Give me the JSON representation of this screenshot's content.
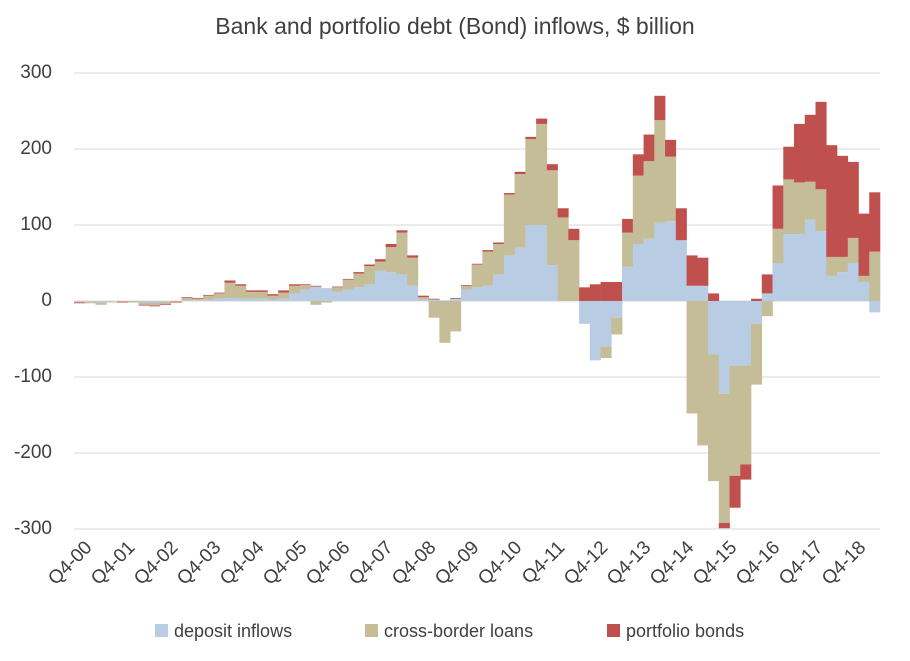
{
  "chart_data": {
    "type": "bar",
    "stacked": true,
    "title": "Bank and portfolio debt (Bond) inflows, $ billion",
    "categories": [
      "Q4-00",
      null,
      null,
      null,
      "Q4-01",
      null,
      null,
      null,
      "Q4-02",
      null,
      null,
      null,
      "Q4-03",
      null,
      null,
      null,
      "Q4-04",
      null,
      null,
      null,
      "Q4-05",
      null,
      null,
      null,
      "Q4-06",
      null,
      null,
      null,
      "Q4-07",
      null,
      null,
      null,
      "Q4-08",
      null,
      null,
      null,
      "Q4-09",
      null,
      null,
      null,
      "Q4-10",
      null,
      null,
      null,
      "Q4-11",
      null,
      null,
      null,
      "Q4-12",
      null,
      null,
      null,
      "Q4-13",
      null,
      null,
      null,
      "Q4-14",
      null,
      null,
      null,
      "Q4-15",
      null,
      null,
      null,
      "Q4-16",
      null,
      null,
      null,
      "Q4-17",
      null,
      null,
      null,
      "Q4-18",
      null,
      null
    ],
    "series": [
      {
        "name": "deposit inflows",
        "color": "#b8cce4",
        "values": [
          -1,
          -1,
          -2,
          -1,
          0,
          0,
          -2,
          -2,
          -1,
          0,
          1,
          1,
          2,
          3,
          4,
          3,
          3,
          3,
          2,
          3,
          10,
          15,
          19,
          17,
          12,
          15,
          18,
          22,
          40,
          38,
          35,
          20,
          2,
          2,
          1,
          3,
          15,
          18,
          20,
          35,
          60,
          70,
          100,
          100,
          47,
          0,
          0,
          -30,
          -78,
          -60,
          -22,
          45,
          75,
          82,
          103,
          105,
          80,
          20,
          20,
          -70,
          -122,
          -85,
          -85,
          -30,
          10,
          50,
          88,
          88,
          107,
          92,
          33,
          38,
          50,
          25,
          -15
        ]
      },
      {
        "name": "cross-border loans",
        "color": "#c4bd97",
        "values": [
          -1,
          -2,
          -3,
          -1,
          -1,
          -2,
          -3,
          -4,
          -3,
          -1,
          3,
          2,
          5,
          7,
          20,
          17,
          9,
          9,
          5,
          8,
          10,
          6,
          -5,
          -2,
          6,
          13,
          18,
          24,
          12,
          33,
          55,
          37,
          3,
          -22,
          -55,
          -40,
          5,
          30,
          45,
          40,
          80,
          97,
          113,
          133,
          125,
          110,
          80,
          0,
          0,
          -15,
          -22,
          45,
          90,
          102,
          135,
          85,
          0,
          -148,
          -190,
          -167,
          -170,
          -145,
          -130,
          -80,
          -20,
          45,
          72,
          68,
          50,
          55,
          25,
          20,
          33,
          8,
          65
        ]
      },
      {
        "name": "portfolio bonds",
        "color": "#c0504d",
        "values": [
          -1,
          0,
          0,
          0,
          -1,
          0,
          -1,
          -1,
          -1,
          -1,
          1,
          1,
          1,
          1,
          3,
          2,
          2,
          2,
          2,
          3,
          2,
          1,
          1,
          0,
          1,
          1,
          2,
          2,
          3,
          4,
          3,
          3,
          2,
          1,
          0,
          1,
          1,
          1,
          2,
          2,
          2,
          3,
          3,
          7,
          8,
          12,
          15,
          18,
          22,
          25,
          25,
          18,
          28,
          35,
          32,
          22,
          42,
          40,
          37,
          10,
          -7,
          -42,
          -20,
          3,
          25,
          57,
          43,
          77,
          88,
          115,
          147,
          133,
          100,
          82,
          78
        ]
      }
    ],
    "ylim": [
      -300,
      300
    ],
    "yticks": [
      -300,
      -200,
      -100,
      0,
      100,
      200,
      300
    ],
    "grid": true
  }
}
